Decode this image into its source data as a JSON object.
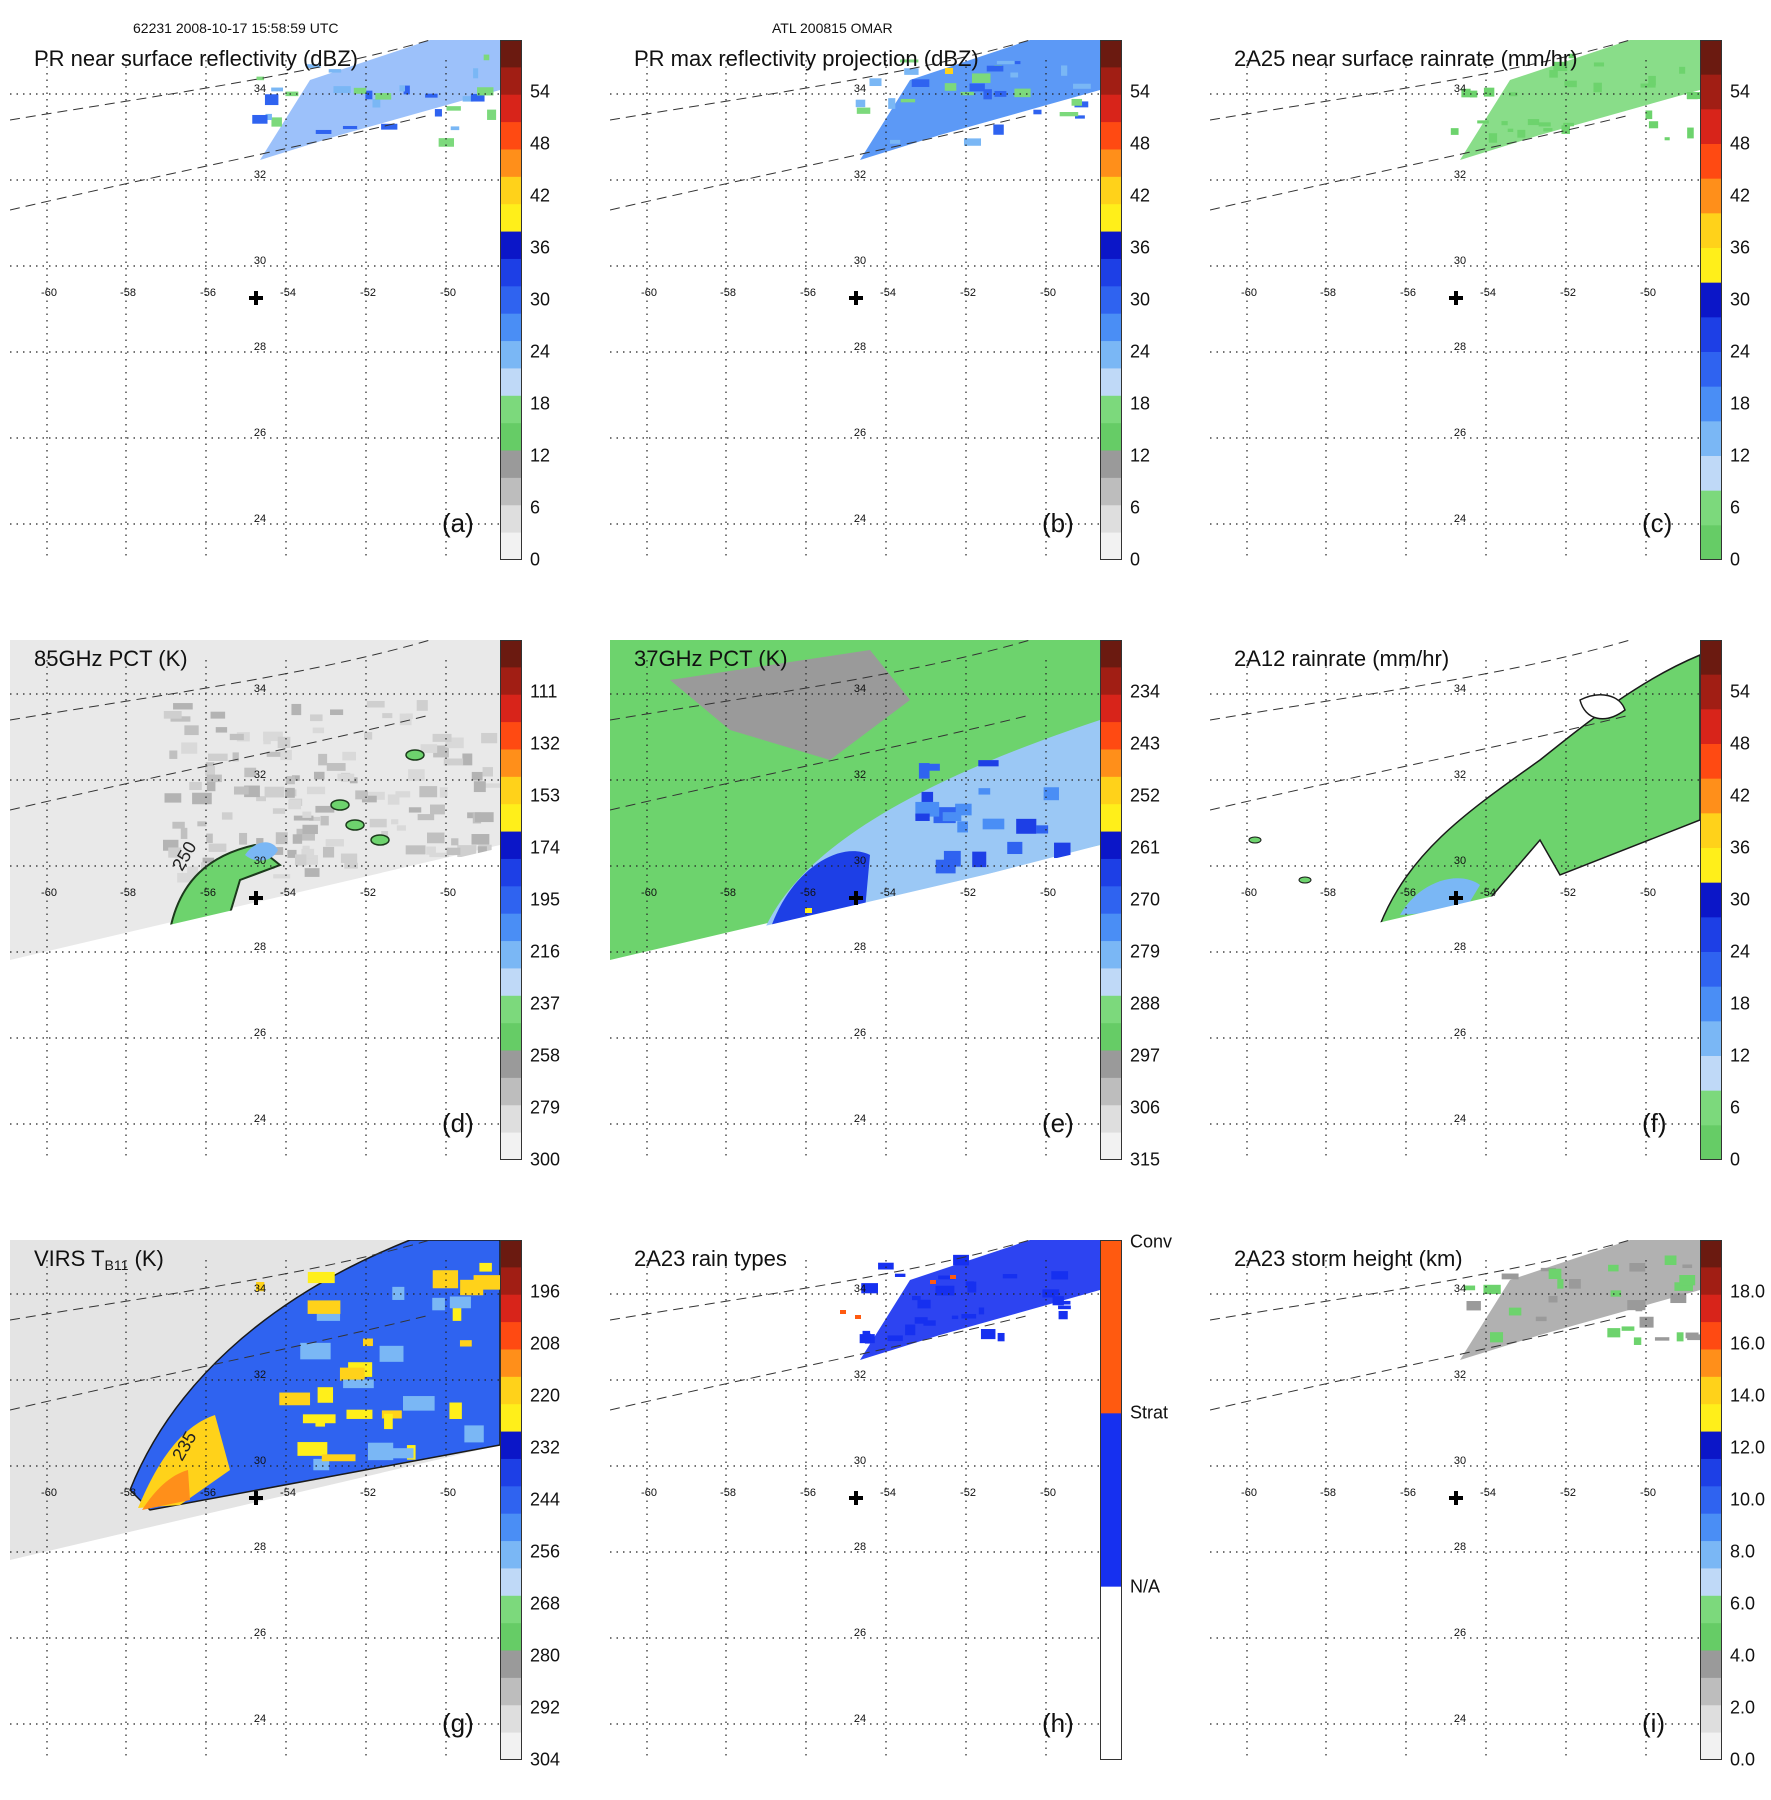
{
  "header": {
    "orbit_time": "62231 2008-10-17 15:58:59 UTC",
    "storm": "ATL 200815 OMAR"
  },
  "map": {
    "lon_labels": [
      "-60",
      "-58",
      "-56",
      "-54",
      "-52",
      "-50"
    ],
    "lat_labels": [
      "34",
      "32",
      "30",
      "28",
      "26",
      "24"
    ],
    "storm_center": {
      "lon": -54.5,
      "lat": 29.3
    }
  },
  "panels": [
    {
      "id": "a",
      "label": "(a)",
      "title": "PR near surface reflectivity (dBZ)",
      "scheme": "dbz",
      "ticks": [
        "54",
        "48",
        "42",
        "36",
        "30",
        "24",
        "18",
        "12",
        "6",
        "0"
      ],
      "swath": "pr",
      "fill": "reflect"
    },
    {
      "id": "b",
      "label": "(b)",
      "title": "PR max reflectivity projection (dBZ)",
      "scheme": "dbz",
      "ticks": [
        "54",
        "48",
        "42",
        "36",
        "30",
        "24",
        "18",
        "12",
        "6",
        "0"
      ],
      "swath": "pr",
      "fill": "reflectmax"
    },
    {
      "id": "c",
      "label": "(c)",
      "title": "2A25 near surface rainrate (mm/hr)",
      "scheme": "rain",
      "ticks": [
        "54",
        "48",
        "42",
        "36",
        "30",
        "24",
        "18",
        "12",
        "6",
        "0"
      ],
      "swath": "pr",
      "fill": "rain"
    },
    {
      "id": "d",
      "label": "(d)",
      "title": "85GHz PCT (K)",
      "scheme": "pct",
      "ticks": [
        "111",
        "132",
        "153",
        "174",
        "195",
        "216",
        "237",
        "258",
        "279",
        "300"
      ],
      "swath": "tmi",
      "fill": "pct85",
      "contour_label": "250"
    },
    {
      "id": "e",
      "label": "(e)",
      "title": "37GHz PCT (K)",
      "scheme": "pct",
      "ticks": [
        "234",
        "243",
        "252",
        "261",
        "270",
        "279",
        "288",
        "297",
        "306",
        "315"
      ],
      "swath": "tmi",
      "fill": "pct37"
    },
    {
      "id": "f",
      "label": "(f)",
      "title": "2A12 rainrate (mm/hr)",
      "scheme": "rain",
      "ticks": [
        "54",
        "48",
        "42",
        "36",
        "30",
        "24",
        "18",
        "12",
        "6",
        "0"
      ],
      "swath": "tmi",
      "fill": "rain12"
    },
    {
      "id": "g",
      "label": "(g)",
      "title": "VIRS T",
      "title_sub": "B11",
      "title_end": " (K)",
      "scheme": "virs",
      "ticks": [
        "196",
        "208",
        "220",
        "232",
        "244",
        "256",
        "268",
        "280",
        "292",
        "304"
      ],
      "swath": "tmi",
      "fill": "virs",
      "contour_label": "235"
    },
    {
      "id": "h",
      "label": "(h)",
      "title": "2A23 rain types",
      "scheme": "types",
      "ticks": [
        "Conv",
        "Strat",
        "N/A"
      ],
      "swath": "pr",
      "fill": "types"
    },
    {
      "id": "i",
      "label": "(i)",
      "title": "2A23 storm height (km)",
      "scheme": "height",
      "ticks": [
        "18.0",
        "16.0",
        "14.0",
        "12.0",
        "10.0",
        "8.0",
        "6.0",
        "4.0",
        "2.0",
        "0.0"
      ],
      "swath": "pr",
      "fill": "height"
    }
  ],
  "colors": {
    "dbz": [
      "#6b1a10",
      "#a11e14",
      "#d8241a",
      "#ff4a12",
      "#ff8f1a",
      "#ffd21a",
      "#ffef1a",
      "#0b16c8",
      "#1d3fe6",
      "#2f63f0",
      "#4a8ef5",
      "#7ab7f5",
      "#bfd9f7",
      "#7cd97c",
      "#66cc66",
      "#9a9a9a",
      "#bdbdbd",
      "#dedede",
      "#f2f2f2"
    ],
    "pct": [
      "#6b1a10",
      "#a11e14",
      "#d8241a",
      "#ff4a12",
      "#ff8f1a",
      "#ffd21a",
      "#ffef1a",
      "#0b16c8",
      "#1d3fe6",
      "#2f63f0",
      "#4a8ef5",
      "#7ab7f5",
      "#bfd9f7",
      "#7cd97c",
      "#66cc66",
      "#9a9a9a",
      "#bdbdbd",
      "#dedede",
      "#f2f2f2"
    ],
    "virs": [
      "#6b1a10",
      "#a11e14",
      "#d8241a",
      "#ff4a12",
      "#ff8f1a",
      "#ffd21a",
      "#ffef1a",
      "#0b16c8",
      "#1d3fe6",
      "#2f63f0",
      "#4a8ef5",
      "#7ab7f5",
      "#bfd9f7",
      "#7cd97c",
      "#66cc66",
      "#9a9a9a",
      "#bdbdbd",
      "#dedede",
      "#f2f2f2"
    ],
    "rain": [
      "#6b1a10",
      "#a11e14",
      "#d8241a",
      "#ff4a12",
      "#ff8f1a",
      "#ffd21a",
      "#ffef1a",
      "#0b16c8",
      "#1d3fe6",
      "#2f63f0",
      "#4a8ef5",
      "#7ab7f5",
      "#bfd9f7",
      "#7cd97c",
      "#66cc66"
    ],
    "height": [
      "#6b1a10",
      "#a11e14",
      "#d8241a",
      "#ff4a12",
      "#ff8f1a",
      "#ffd21a",
      "#ffef1a",
      "#0b16c8",
      "#1d3fe6",
      "#2f63f0",
      "#4a8ef5",
      "#7ab7f5",
      "#bfd9f7",
      "#7cd97c",
      "#66cc66",
      "#9a9a9a",
      "#bdbdbd",
      "#dedede",
      "#f2f2f2"
    ],
    "types": [
      "#ff5a10",
      "#1630f0",
      "#ffffff"
    ]
  }
}
